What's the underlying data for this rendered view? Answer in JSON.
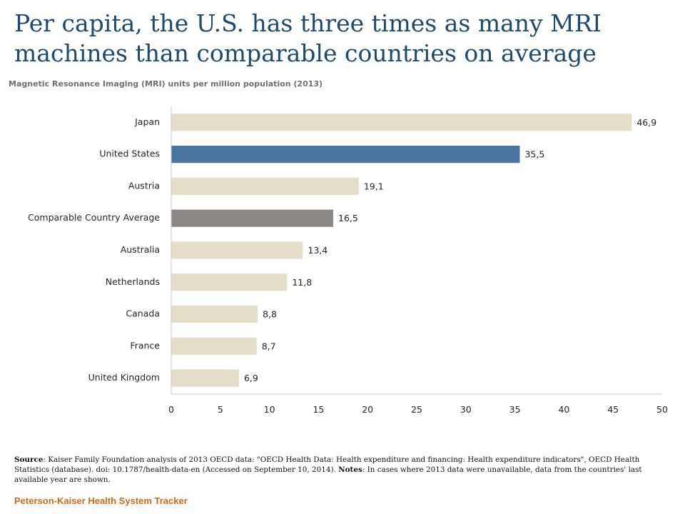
{
  "title": "Per capita, the U.S. has three times as many MRI machines than comparable countries on average",
  "source": {
    "label_source": "Source",
    "text_source": ": Kaiser Family Foundation analysis of 2013 OECD data: \"OECD Health Data: Health expenditure and financing: Health expenditure indicators\", OECD Health Statistics (database). doi: 10.1787/health-data-en (Accessed on September 10, 2014). ",
    "label_notes": "Notes",
    "text_notes": ": In cases where 2013 data were unavailable, data from the countries' last available year are shown."
  },
  "footer": "Peterson-Kaiser Health System Tracker",
  "chart_data": {
    "type": "bar",
    "orientation": "horizontal",
    "subtitle": "Magnetic Resonance Imaging (MRI) units per million population (2013)",
    "categories": [
      "Japan",
      "United States",
      "Austria",
      "Comparable Country Average",
      "Australia",
      "Netherlands",
      "Canada",
      "France",
      "United Kingdom"
    ],
    "values": [
      46.9,
      35.5,
      19.1,
      16.5,
      13.4,
      11.8,
      8.8,
      8.7,
      6.9
    ],
    "value_labels": [
      "46,9",
      "35,5",
      "19,1",
      "16,5",
      "13,4",
      "11,8",
      "8,8",
      "8,7",
      "6,9"
    ],
    "xlim": [
      0,
      50
    ],
    "xticks": [
      0,
      5,
      10,
      15,
      20,
      25,
      30,
      35,
      40,
      45,
      50
    ],
    "grid": false,
    "colors": {
      "default": "#e4ddca",
      "United States": "#4a74a0",
      "Comparable Country Average": "#8d8786",
      "axis": "#c8c8c8"
    }
  }
}
